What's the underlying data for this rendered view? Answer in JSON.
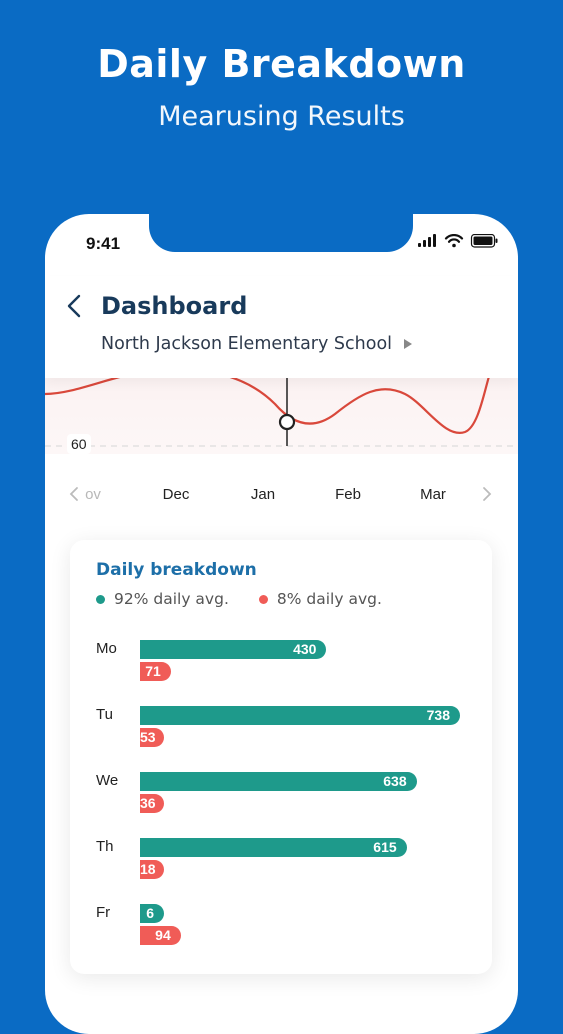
{
  "promo": {
    "title": "Daily Breakdown",
    "subtitle": "Mearusing Results"
  },
  "status_bar": {
    "time": "9:41",
    "icons": [
      "signal-icon",
      "wifi-icon",
      "battery-icon"
    ]
  },
  "header": {
    "title": "Dashboard",
    "school": "North Jackson Elementary School"
  },
  "line_chart": {
    "y_label": "60",
    "months": [
      "Nov",
      "Dec",
      "Jan",
      "Feb",
      "Mar"
    ],
    "months_display": [
      "ov",
      "Dec",
      "Jan",
      "Feb",
      "Mar"
    ],
    "selected_month": "Jan",
    "line_color": "#d9483b"
  },
  "breakdown": {
    "title": "Daily breakdown",
    "legend": [
      {
        "label": "92% daily avg.",
        "color": "#1e9a8b"
      },
      {
        "label": "8% daily avg.",
        "color": "#f05c57"
      }
    ]
  },
  "chart_data": {
    "type": "bar",
    "categories": [
      "Mo",
      "Tu",
      "We",
      "Th",
      "Fr"
    ],
    "series": [
      {
        "name": "92% daily avg.",
        "values": [
          430,
          738,
          638,
          615,
          6
        ],
        "color": "#1e9a8b"
      },
      {
        "name": "8% daily avg.",
        "values": [
          71,
          53,
          36,
          18,
          94
        ],
        "color": "#f05c57"
      }
    ],
    "title": "Daily breakdown",
    "xlim": [
      0,
      738
    ]
  },
  "colors": {
    "background": "#0a6bc4",
    "header_text": "#183a5b",
    "card_title": "#1d6fa8"
  }
}
